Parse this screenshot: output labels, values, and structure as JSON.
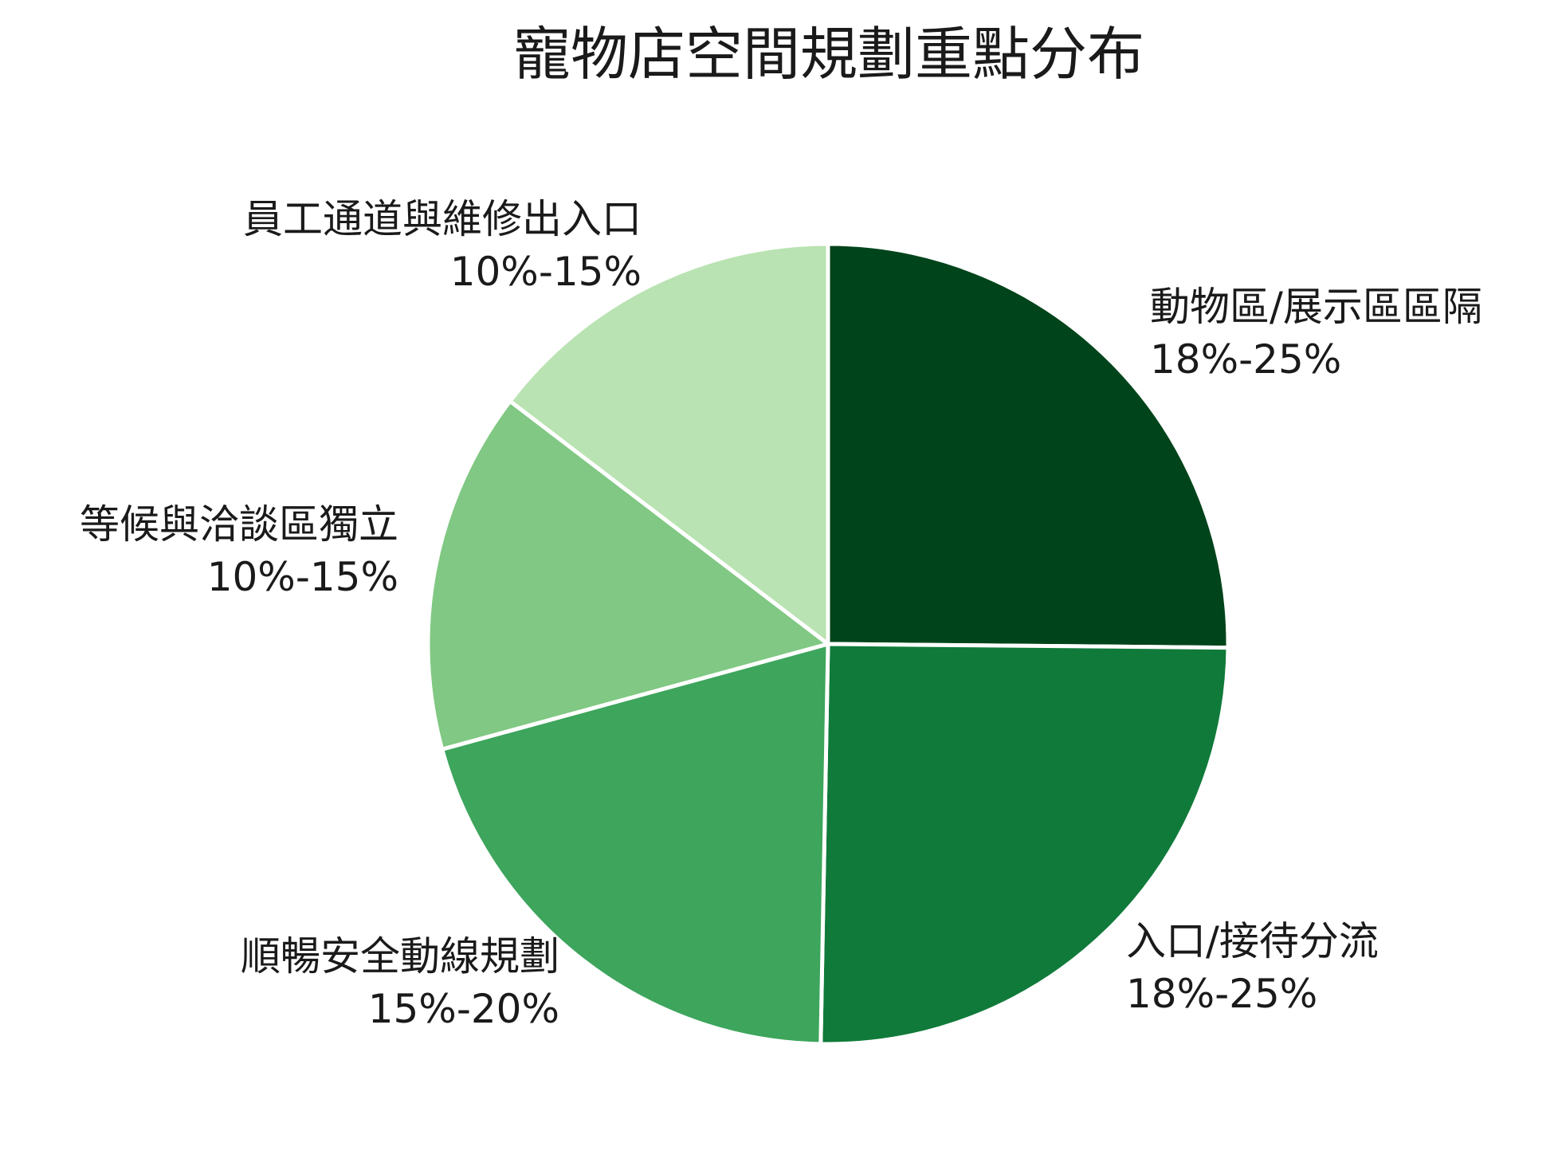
{
  "chart_data": {
    "type": "pie",
    "title": "寵物店空間規劃重點分布",
    "slices": [
      {
        "label": "動物區/展示區區隔",
        "range_text": "18%-25%",
        "value": 21.5,
        "color": "#00441b"
      },
      {
        "label": "入口/接待分流",
        "range_text": "18%-25%",
        "value": 21.5,
        "color": "#107a3a"
      },
      {
        "label": "順暢安全動線規劃",
        "range_text": "15%-20%",
        "value": 17.5,
        "color": "#3da55c"
      },
      {
        "label": "等候與洽談區獨立",
        "range_text": "10%-15%",
        "value": 12.5,
        "color": "#80c883"
      },
      {
        "label": "員工通道與維修出入口",
        "range_text": "10%-15%",
        "value": 12.5,
        "color": "#b9e3b2"
      }
    ],
    "start_angle": "12 o'clock",
    "direction": "clockwise",
    "legend": "none",
    "slice_border_color": "#ffffff"
  }
}
